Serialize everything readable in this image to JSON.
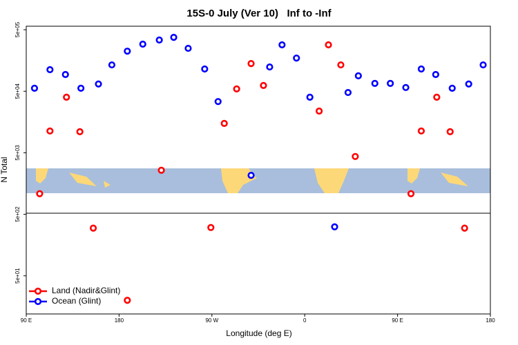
{
  "chart_data": {
    "type": "scatter",
    "title": "15S-0 July (Ver 10)   Inf to -Inf",
    "x_label": "Longitude (deg E)",
    "y_label": "N Total",
    "log_y": true,
    "legend_position": "lower left",
    "xlim": [
      90,
      540
    ],
    "ylim": [
      12,
      570000
    ],
    "xticks": [
      {
        "value": 90,
        "label": "90 E"
      },
      {
        "value": 180,
        "label": "180"
      },
      {
        "value": 270,
        "label": "90 W"
      },
      {
        "value": 360,
        "label": "0"
      },
      {
        "value": 450,
        "label": "90 E"
      },
      {
        "value": 540,
        "label": "180"
      }
    ],
    "yticks": [
      {
        "value": 50,
        "label": "5e+01"
      },
      {
        "value": 500,
        "label": "5e+02"
      },
      {
        "value": 5000,
        "label": "5e+03"
      },
      {
        "value": 50000,
        "label": "5e+04"
      },
      {
        "value": 500000,
        "label": "5e+05"
      }
    ],
    "series": [
      {
        "name": "Land (Nadir&Glint)",
        "color": "#ff0000",
        "x": [
          103,
          113,
          129,
          142,
          155,
          188,
          221,
          269,
          282,
          294,
          308,
          320,
          374,
          383,
          395,
          409,
          463,
          473,
          488,
          501,
          515
        ],
        "values": [
          1080,
          11300,
          40000,
          11000,
          298,
          20,
          2600,
          305,
          15000,
          54500,
          141000,
          62000,
          23800,
          284000,
          134000,
          4350,
          1080,
          11300,
          40000,
          11000,
          298
        ]
      },
      {
        "name": "Ocean (Glint)",
        "color": "#0000ff",
        "x": [
          98,
          113,
          128,
          143,
          160,
          173,
          188,
          203,
          219,
          233,
          247,
          263,
          276,
          308,
          326,
          338,
          352,
          365,
          389,
          402,
          412,
          428,
          443,
          458,
          473,
          487,
          503,
          519,
          533
        ],
        "values": [
          56000,
          112000,
          93500,
          56000,
          65500,
          134000,
          224000,
          291000,
          340000,
          376000,
          249000,
          115000,
          34000,
          2150,
          124000,
          284000,
          173000,
          40000,
          313,
          47700,
          89000,
          67000,
          67000,
          57500,
          115000,
          93500,
          56000,
          65500,
          134000
        ]
      }
    ]
  }
}
